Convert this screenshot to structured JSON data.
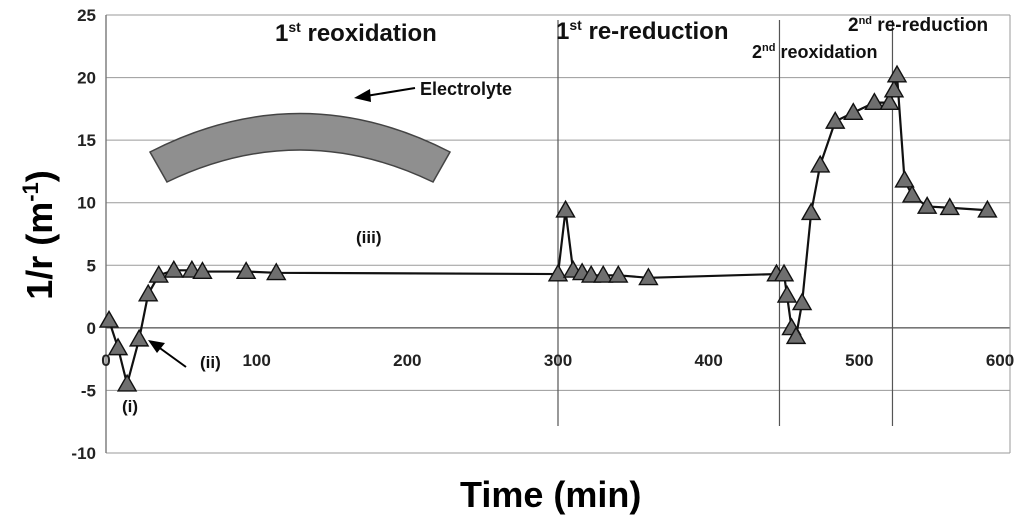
{
  "chart_data": {
    "type": "line",
    "title": "",
    "xlabel": "Time (min)",
    "ylabel": "1/r (m",
    "ylabel_sup": "-1",
    "ylabel_end": ")",
    "xlim": [
      0,
      600
    ],
    "ylim": [
      -10,
      25
    ],
    "x_ticks": [
      "0",
      "100",
      "200",
      "300",
      "400",
      "500",
      "600"
    ],
    "y_ticks": [
      "25",
      "20",
      "15",
      "10",
      "5",
      "0",
      "-5",
      "-10"
    ],
    "grid": true,
    "marker": "triangle",
    "series": [
      {
        "name": "1/r",
        "points": [
          [
            2,
            0.6
          ],
          [
            8,
            -1.6
          ],
          [
            14,
            -4.5
          ],
          [
            22,
            -0.9
          ],
          [
            28,
            2.7
          ],
          [
            35,
            4.2
          ],
          [
            45,
            4.6
          ],
          [
            57,
            4.6
          ],
          [
            64,
            4.5
          ],
          [
            93,
            4.5
          ],
          [
            113,
            4.4
          ],
          [
            300,
            4.3
          ],
          [
            305,
            9.4
          ],
          [
            310,
            4.6
          ],
          [
            316,
            4.4
          ],
          [
            322,
            4.2
          ],
          [
            330,
            4.2
          ],
          [
            340,
            4.2
          ],
          [
            360,
            4.0
          ],
          [
            445,
            4.3
          ],
          [
            450,
            4.3
          ],
          [
            452,
            2.6
          ],
          [
            455,
            0.0
          ],
          [
            458,
            -0.7
          ],
          [
            462,
            2.0
          ],
          [
            468,
            9.2
          ],
          [
            474,
            13.0
          ],
          [
            484,
            16.5
          ],
          [
            496,
            17.2
          ],
          [
            510,
            18.0
          ],
          [
            520,
            18.0
          ],
          [
            523,
            19.0
          ],
          [
            525,
            20.2
          ],
          [
            530,
            11.8
          ],
          [
            535,
            10.6
          ],
          [
            545,
            9.7
          ],
          [
            560,
            9.6
          ],
          [
            585,
            9.4
          ]
        ]
      }
    ],
    "phase_markers": [
      300,
      447,
      522
    ],
    "annotations": {
      "reox1_main": "1",
      "reox1_sup": "st",
      "reox1_rest": " reoxidation",
      "rered1_main": "1",
      "rered1_sup": "st",
      "rered1_rest": " re-reduction",
      "reox2_main": "2",
      "reox2_sup": "nd",
      "reox2_rest": " reoxidation",
      "rered2_main": "2",
      "rered2_sup": "nd",
      "rered2_rest": " re-reduction",
      "electrolyte": "Electrolyte",
      "label_i": "(i)",
      "label_ii": "(ii)",
      "label_iii": "(iii)"
    }
  }
}
